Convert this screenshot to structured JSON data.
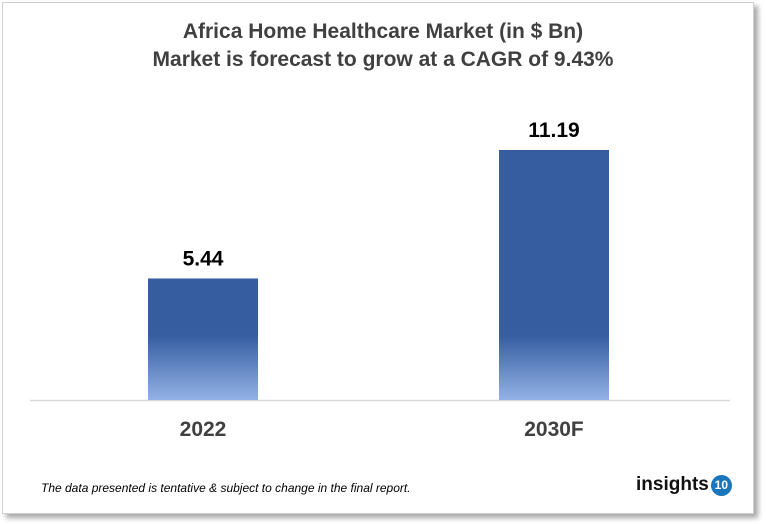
{
  "chart_data": {
    "type": "bar",
    "title": "Africa Home Healthcare Market (in $ Bn)",
    "subtitle": "Market is forecast to grow at a CAGR of 9.43%",
    "categories": [
      "2022",
      "2030F"
    ],
    "values": [
      5.44,
      11.19
    ],
    "data_labels": [
      "5.44",
      "11.19"
    ],
    "xlabel": "",
    "ylabel": "",
    "ylim": [
      0,
      11.19
    ],
    "grid": false,
    "colors": {
      "bar_top": "#355DA0",
      "bar_bottom": "#93B1E6",
      "axis": "#d9d9d9"
    }
  },
  "footer": {
    "note": "The data presented is tentative & subject to change in the final report.",
    "logo_text": "insights",
    "logo_badge": "10"
  }
}
